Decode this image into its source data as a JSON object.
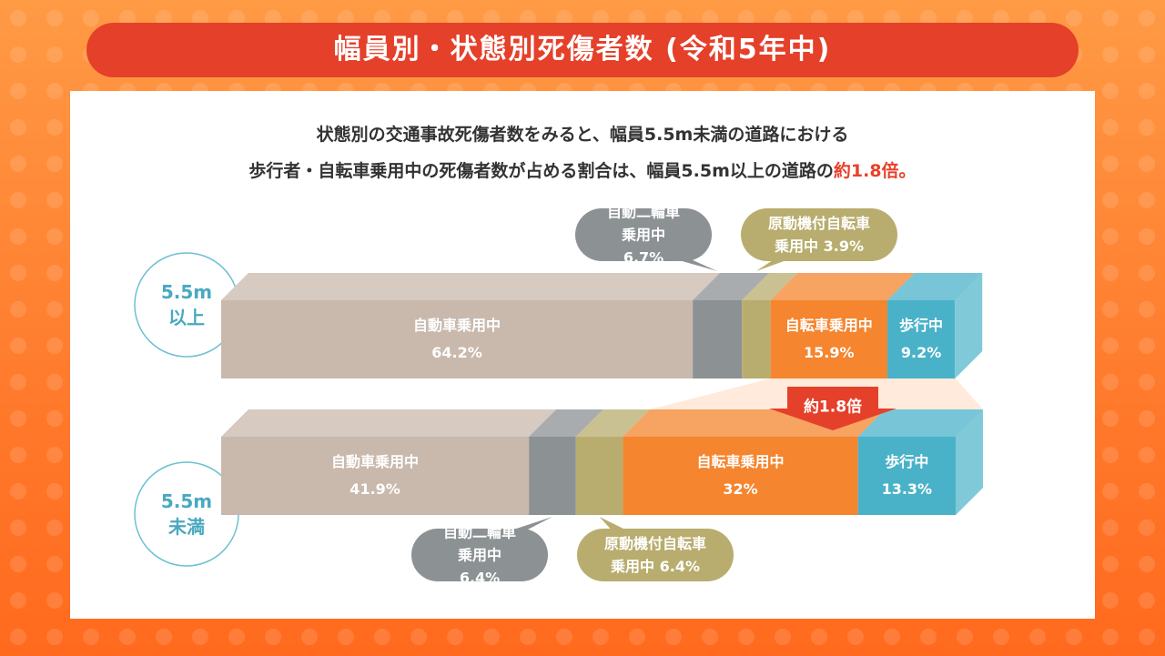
{
  "chart_data": {
    "type": "bar",
    "orientation": "horizontal",
    "stacked": true,
    "title": "幅員別・状態別死傷者数 (令和5年中)",
    "subtitle_lines": [
      "状態別の交通事故死傷者数をみると、幅員5.5m未満の道路における",
      "歩行者・自転車乗用中の死傷者数が占める割合は、幅員5.5m以上の道路の"
    ],
    "subtitle_highlight": "約1.8倍。",
    "annotation": "約1.8倍",
    "categories": [
      "5.5m以上",
      "5.5m未満"
    ],
    "xlim": [
      0,
      100
    ],
    "series": [
      {
        "name": "自動車乗用中",
        "color": "#c9b9ad",
        "values": [
          64.2,
          41.9
        ],
        "value_labels": [
          "64.2%",
          "41.9%"
        ]
      },
      {
        "name": "自動二輪車乗用中",
        "color": "#8c9194",
        "values": [
          6.7,
          6.4
        ],
        "value_labels": [
          "6.7%",
          "6.4%"
        ]
      },
      {
        "name": "原動機付自転車乗用中",
        "color": "#b8ad6e",
        "values": [
          3.9,
          6.4
        ],
        "value_labels": [
          "3.9%",
          "6.4%"
        ]
      },
      {
        "name": "自転車乗用中",
        "color": "#f5852e",
        "values": [
          15.9,
          32
        ],
        "value_labels": [
          "15.9%",
          "32%"
        ]
      },
      {
        "name": "歩行中",
        "color": "#4ab2c8",
        "values": [
          9.2,
          13.3
        ],
        "value_labels": [
          "9.2%",
          "13.3%"
        ]
      }
    ]
  }
}
